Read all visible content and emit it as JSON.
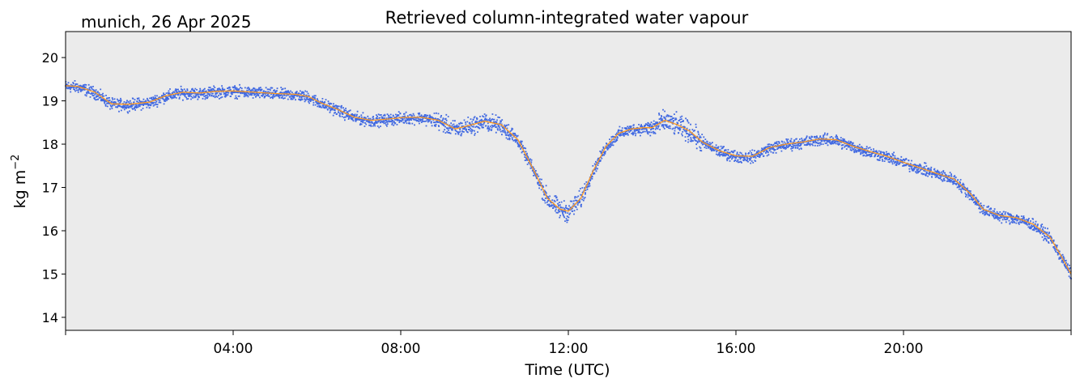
{
  "location_date": "munich, 26 Apr 2025",
  "ylabel_base": "kg m",
  "ylabel_exp": "−2",
  "colors": {
    "plot_bg": "#ebebeb",
    "scatter": "#4169e1",
    "smooth": "#ff9a1f",
    "axis": "#000000"
  },
  "chart_data": {
    "type": "scatter",
    "title": "Retrieved column-integrated water vapour",
    "xlabel": "Time (UTC)",
    "ylabel": "kg m−2",
    "xlim_hours": [
      0,
      24
    ],
    "ylim": [
      13.7,
      20.6
    ],
    "x_ticks": [
      {
        "hour": 4,
        "label": "04:00"
      },
      {
        "hour": 8,
        "label": "08:00"
      },
      {
        "hour": 12,
        "label": "12:00"
      },
      {
        "hour": 16,
        "label": "16:00"
      },
      {
        "hour": 20,
        "label": "20:00"
      }
    ],
    "y_ticks": [
      {
        "value": 14,
        "label": "14"
      },
      {
        "value": 15,
        "label": "15"
      },
      {
        "value": 16,
        "label": "16"
      },
      {
        "value": 17,
        "label": "17"
      },
      {
        "value": 18,
        "label": "18"
      },
      {
        "value": 19,
        "label": "19"
      },
      {
        "value": 20,
        "label": "20"
      }
    ],
    "series": [
      {
        "kind": "smoothed-line",
        "x_hours": [
          0,
          0.3,
          0.7,
          1.1,
          1.5,
          2.0,
          2.4,
          2.8,
          3.2,
          3.6,
          4.0,
          4.5,
          5.0,
          5.5,
          5.8,
          6.1,
          6.5,
          6.9,
          7.3,
          7.7,
          8.1,
          8.5,
          8.9,
          9.3,
          9.7,
          10.0,
          10.4,
          10.8,
          11.2,
          11.5,
          11.8,
          12.0,
          12.3,
          12.6,
          12.9,
          13.2,
          13.5,
          13.8,
          14.0,
          14.3,
          14.6,
          14.9,
          15.2,
          15.6,
          16.0,
          16.4,
          16.8,
          17.2,
          17.6,
          18.0,
          18.4,
          18.8,
          19.2,
          19.6,
          20.0,
          20.4,
          20.8,
          21.2,
          21.6,
          21.9,
          22.3,
          22.7,
          23.1,
          23.5,
          23.8,
          24.0
        ],
        "y": [
          19.35,
          19.33,
          19.2,
          18.93,
          18.92,
          18.97,
          19.12,
          19.2,
          19.18,
          19.22,
          19.23,
          19.2,
          19.17,
          19.15,
          19.1,
          18.95,
          18.8,
          18.62,
          18.55,
          18.58,
          18.62,
          18.62,
          18.55,
          18.35,
          18.45,
          18.53,
          18.45,
          18.1,
          17.35,
          16.75,
          16.5,
          16.45,
          16.75,
          17.4,
          17.95,
          18.25,
          18.35,
          18.38,
          18.38,
          18.55,
          18.45,
          18.3,
          18.05,
          17.85,
          17.73,
          17.72,
          17.92,
          18.0,
          18.05,
          18.12,
          18.1,
          17.95,
          17.83,
          17.72,
          17.58,
          17.45,
          17.32,
          17.2,
          16.85,
          16.5,
          16.35,
          16.3,
          16.15,
          15.85,
          15.35,
          15.0
        ]
      }
    ]
  }
}
